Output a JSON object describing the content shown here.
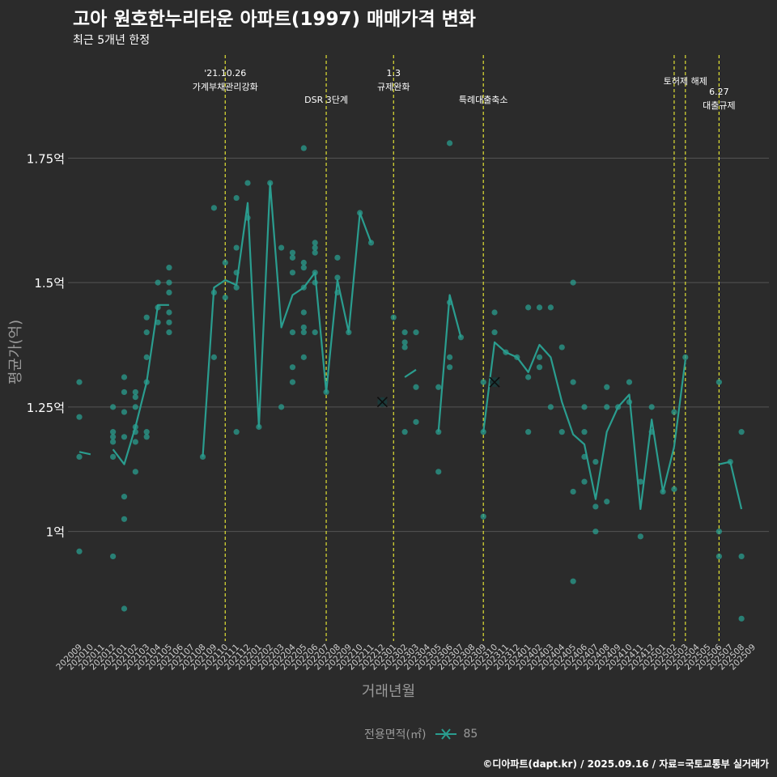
{
  "title": "고아 원호한누리타운 아파트(1997) 매매가격 변화",
  "subtitle": "최근 5개년 한정",
  "caption": "©디아파트(dapt.kr) / 2025.09.16 / 자료=국토교통부 실거래가",
  "legend": {
    "title": "전용면적(㎡)",
    "entry": "85"
  },
  "colors": {
    "background": "#2b2b2b",
    "series": "#2a9d8f",
    "vline": "#e0e034",
    "grid": "#555555",
    "text": "#ffffff",
    "axis_text": "#9a9a9a"
  },
  "chart_data": {
    "type": "line",
    "xlabel": "거래년월",
    "ylabel": "평균가(억)",
    "ylim": [
      0.78,
      1.97
    ],
    "categories": [
      "202009",
      "202010",
      "202011",
      "202012",
      "202101",
      "202102",
      "202103",
      "202104",
      "202105",
      "202106",
      "202107",
      "202108",
      "202109",
      "202110",
      "202111",
      "202112",
      "202201",
      "202202",
      "202203",
      "202204",
      "202205",
      "202206",
      "202207",
      "202208",
      "202209",
      "202210",
      "202211",
      "202212",
      "202301",
      "202302",
      "202303",
      "202304",
      "202305",
      "202306",
      "202307",
      "202308",
      "202309",
      "202310",
      "202311",
      "202312",
      "202401",
      "202402",
      "202403",
      "202404",
      "202405",
      "202406",
      "202407",
      "202408",
      "202409",
      "202410",
      "202411",
      "202412",
      "202501",
      "202502",
      "202503",
      "202504",
      "202505",
      "202506",
      "202507",
      "202508",
      "202509"
    ],
    "yticks": [
      {
        "value": 1.0,
        "label": "1억"
      },
      {
        "value": 1.25,
        "label": "1.25억"
      },
      {
        "value": 1.5,
        "label": "1.5억"
      },
      {
        "value": 1.75,
        "label": "1.75억"
      }
    ],
    "line_segments": [
      [
        [
          0,
          1.16
        ],
        [
          1,
          1.155
        ]
      ],
      [
        [
          3,
          1.165
        ],
        [
          4,
          1.135
        ],
        [
          5,
          1.21
        ],
        [
          6,
          1.3
        ],
        [
          7,
          1.455
        ],
        [
          8,
          1.455
        ]
      ],
      [
        [
          11,
          1.15
        ],
        [
          12,
          1.49
        ],
        [
          13,
          1.505
        ],
        [
          14,
          1.495
        ],
        [
          15,
          1.66
        ],
        [
          16,
          1.21
        ],
        [
          17,
          1.7
        ],
        [
          18,
          1.41
        ],
        [
          19,
          1.475
        ],
        [
          20,
          1.49
        ],
        [
          21,
          1.52
        ],
        [
          22,
          1.28
        ],
        [
          23,
          1.505
        ],
        [
          24,
          1.4
        ],
        [
          25,
          1.64
        ],
        [
          26,
          1.58
        ]
      ],
      [
        [
          29,
          1.31
        ],
        [
          30,
          1.325
        ]
      ],
      [
        [
          32,
          1.2
        ],
        [
          33,
          1.475
        ],
        [
          34,
          1.39
        ]
      ],
      [
        [
          36,
          1.2
        ],
        [
          37,
          1.38
        ],
        [
          38,
          1.36
        ],
        [
          39,
          1.35
        ],
        [
          40,
          1.32
        ],
        [
          41,
          1.375
        ],
        [
          42,
          1.35
        ],
        [
          43,
          1.26
        ],
        [
          44,
          1.195
        ],
        [
          45,
          1.175
        ],
        [
          46,
          1.065
        ],
        [
          47,
          1.2
        ],
        [
          48,
          1.25
        ],
        [
          49,
          1.275
        ],
        [
          50,
          1.045
        ],
        [
          51,
          1.225
        ],
        [
          52,
          1.08
        ],
        [
          53,
          1.17
        ],
        [
          54,
          1.345
        ]
      ],
      [
        [
          57,
          1.135
        ],
        [
          58,
          1.14
        ],
        [
          59,
          1.045
        ]
      ]
    ],
    "points": [
      [
        0,
        1.3
      ],
      [
        0,
        1.23
      ],
      [
        0,
        1.15
      ],
      [
        0,
        0.96
      ],
      [
        3,
        1.25
      ],
      [
        3,
        1.2
      ],
      [
        3,
        1.19
      ],
      [
        3,
        1.18
      ],
      [
        3,
        1.15
      ],
      [
        3,
        0.95
      ],
      [
        4,
        1.31
      ],
      [
        4,
        1.28
      ],
      [
        4,
        1.24
      ],
      [
        4,
        1.19
      ],
      [
        4,
        1.07
      ],
      [
        4,
        1.025
      ],
      [
        4,
        0.845
      ],
      [
        5,
        1.28
      ],
      [
        5,
        1.27
      ],
      [
        5,
        1.25
      ],
      [
        5,
        1.21
      ],
      [
        5,
        1.2
      ],
      [
        5,
        1.18
      ],
      [
        5,
        1.12
      ],
      [
        6,
        1.43
      ],
      [
        6,
        1.4
      ],
      [
        6,
        1.35
      ],
      [
        6,
        1.3
      ],
      [
        6,
        1.2
      ],
      [
        6,
        1.19
      ],
      [
        7,
        1.5
      ],
      [
        7,
        1.45
      ],
      [
        7,
        1.42
      ],
      [
        8,
        1.53
      ],
      [
        8,
        1.5
      ],
      [
        8,
        1.48
      ],
      [
        8,
        1.44
      ],
      [
        8,
        1.42
      ],
      [
        8,
        1.4
      ],
      [
        11,
        1.15
      ],
      [
        12,
        1.65
      ],
      [
        12,
        1.48
      ],
      [
        12,
        1.35
      ],
      [
        13,
        1.54
      ],
      [
        13,
        1.47
      ],
      [
        14,
        1.67
      ],
      [
        14,
        1.57
      ],
      [
        14,
        1.52
      ],
      [
        14,
        1.49
      ],
      [
        14,
        1.2
      ],
      [
        15,
        1.7
      ],
      [
        15,
        1.63
      ],
      [
        16,
        1.21
      ],
      [
        17,
        1.7
      ],
      [
        18,
        1.57
      ],
      [
        18,
        1.25
      ],
      [
        19,
        1.56
      ],
      [
        19,
        1.55
      ],
      [
        19,
        1.52
      ],
      [
        19,
        1.4
      ],
      [
        19,
        1.33
      ],
      [
        19,
        1.3
      ],
      [
        20,
        1.77
      ],
      [
        20,
        1.54
      ],
      [
        20,
        1.53
      ],
      [
        20,
        1.49
      ],
      [
        20,
        1.44
      ],
      [
        20,
        1.41
      ],
      [
        20,
        1.4
      ],
      [
        20,
        1.35
      ],
      [
        21,
        1.58
      ],
      [
        21,
        1.57
      ],
      [
        21,
        1.56
      ],
      [
        21,
        1.52
      ],
      [
        21,
        1.5
      ],
      [
        21,
        1.4
      ],
      [
        22,
        1.28
      ],
      [
        23,
        1.55
      ],
      [
        23,
        1.51
      ],
      [
        23,
        1.48
      ],
      [
        24,
        1.4
      ],
      [
        25,
        1.64
      ],
      [
        26,
        1.58
      ],
      [
        28,
        1.43
      ],
      [
        29,
        1.4
      ],
      [
        29,
        1.38
      ],
      [
        29,
        1.37
      ],
      [
        29,
        1.2
      ],
      [
        30,
        1.4
      ],
      [
        30,
        1.29
      ],
      [
        30,
        1.22
      ],
      [
        32,
        1.29
      ],
      [
        32,
        1.2
      ],
      [
        32,
        1.12
      ],
      [
        33,
        1.78
      ],
      [
        33,
        1.46
      ],
      [
        33,
        1.35
      ],
      [
        33,
        1.33
      ],
      [
        34,
        1.39
      ],
      [
        36,
        1.3
      ],
      [
        36,
        1.2
      ],
      [
        36,
        1.03
      ],
      [
        37,
        1.44
      ],
      [
        37,
        1.4
      ],
      [
        37,
        1.3
      ],
      [
        38,
        1.36
      ],
      [
        39,
        1.35
      ],
      [
        40,
        1.45
      ],
      [
        40,
        1.31
      ],
      [
        40,
        1.2
      ],
      [
        41,
        1.45
      ],
      [
        41,
        1.35
      ],
      [
        41,
        1.33
      ],
      [
        42,
        1.45
      ],
      [
        42,
        1.25
      ],
      [
        43,
        1.37
      ],
      [
        43,
        1.2
      ],
      [
        44,
        1.5
      ],
      [
        44,
        1.3
      ],
      [
        44,
        1.08
      ],
      [
        44,
        0.9
      ],
      [
        45,
        1.25
      ],
      [
        45,
        1.2
      ],
      [
        45,
        1.15
      ],
      [
        45,
        1.1
      ],
      [
        46,
        1.14
      ],
      [
        46,
        1.05
      ],
      [
        46,
        1.0
      ],
      [
        47,
        1.29
      ],
      [
        47,
        1.25
      ],
      [
        47,
        1.06
      ],
      [
        48,
        1.25
      ],
      [
        49,
        1.3
      ],
      [
        49,
        1.26
      ],
      [
        50,
        1.1
      ],
      [
        50,
        0.99
      ],
      [
        51,
        1.25
      ],
      [
        51,
        1.2
      ],
      [
        52,
        1.08
      ],
      [
        53,
        1.24
      ],
      [
        53,
        1.085
      ],
      [
        54,
        1.35
      ],
      [
        57,
        1.3
      ],
      [
        57,
        1.0
      ],
      [
        57,
        0.95
      ],
      [
        58,
        1.14
      ],
      [
        59,
        1.2
      ],
      [
        59,
        0.95
      ],
      [
        59,
        0.825
      ]
    ],
    "cross_markers": [
      [
        27,
        1.26
      ],
      [
        37,
        1.3
      ]
    ],
    "events": [
      {
        "x": 13,
        "lines": [
          "'21.10.26",
          "가계부채관리강화"
        ],
        "row": 0
      },
      {
        "x": 22,
        "lines": [
          "DSR 3단계"
        ],
        "row": 2
      },
      {
        "x": 28,
        "lines": [
          "1.3",
          "규제완화"
        ],
        "row": 0
      },
      {
        "x": 36,
        "lines": [
          "특례대출축소"
        ],
        "row": 2
      },
      {
        "x": 53,
        "lines": [
          ""
        ],
        "row": 0
      },
      {
        "x": 54,
        "lines": [
          "토허제 해제"
        ],
        "row": 1
      },
      {
        "x": 57,
        "lines": [
          "6.27",
          "대출규제"
        ],
        "row": 2
      }
    ]
  }
}
